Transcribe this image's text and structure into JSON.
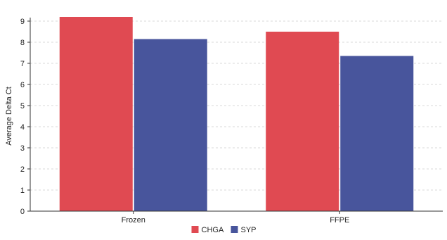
{
  "chart_data": {
    "type": "bar",
    "title": "",
    "xlabel": "",
    "ylabel": "Average Delta Ct",
    "categories": [
      "Frozen",
      "FFPE"
    ],
    "series": [
      {
        "name": "CHGA",
        "color": "#e04a52",
        "values": [
          9.2,
          8.5
        ]
      },
      {
        "name": "SYP",
        "color": "#48559c",
        "values": [
          8.15,
          7.35
        ]
      }
    ],
    "ylim": [
      0,
      9
    ],
    "yticks": [
      0,
      1,
      2,
      3,
      4,
      5,
      6,
      7,
      8,
      9
    ],
    "grid": true,
    "legend_position": "bottom-center"
  }
}
